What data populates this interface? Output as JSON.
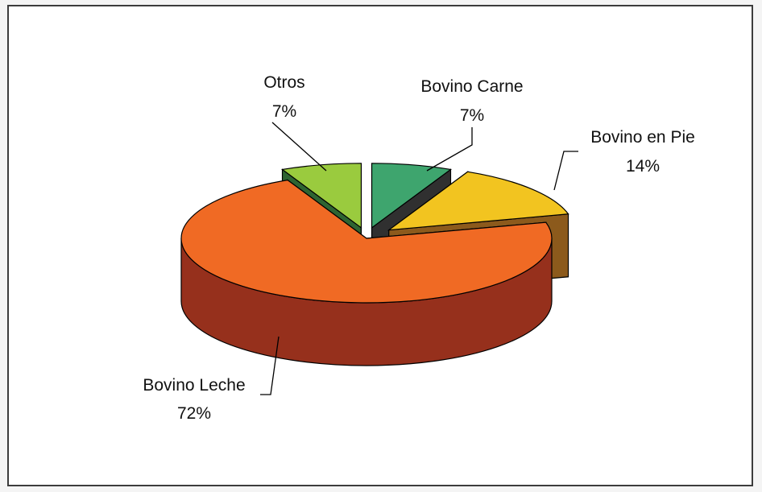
{
  "chart_data": {
    "type": "pie",
    "style": "3d-exploded",
    "title": "",
    "slices": [
      {
        "label": "Bovino Carne",
        "value": 7,
        "pct_text": "7%",
        "color": "#3ea56e",
        "side_color": "#303030"
      },
      {
        "label": "Bovino en Pie",
        "value": 14,
        "pct_text": "14%",
        "color": "#f2c420",
        "side_color": "#8c5a1c"
      },
      {
        "label": "Bovino Leche",
        "value": 72,
        "pct_text": "72%",
        "color": "#f06a24",
        "side_color": "#96301c"
      },
      {
        "label": "Otros",
        "value": 7,
        "pct_text": "7%",
        "color": "#9acb3e",
        "side_color": "#2e6432"
      }
    ]
  }
}
